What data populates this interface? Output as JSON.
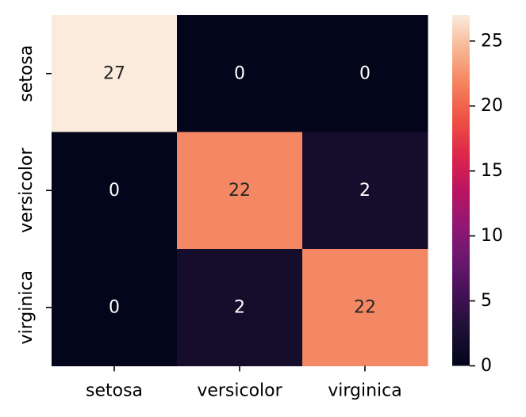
{
  "chart_data": {
    "type": "heatmap",
    "title": "",
    "xlabel": "",
    "ylabel": "",
    "x_categories": [
      "setosa",
      "versicolor",
      "virginica"
    ],
    "y_categories": [
      "setosa",
      "versicolor",
      "virginica"
    ],
    "values": [
      [
        27,
        0,
        0
      ],
      [
        0,
        22,
        2
      ],
      [
        0,
        2,
        22
      ]
    ],
    "annotated": true,
    "colormap": "rocket",
    "colorbar": {
      "min": 0,
      "max": 27,
      "ticks": [
        0,
        5,
        10,
        15,
        20,
        25
      ],
      "placement": "right"
    },
    "colors": {
      "low": "#03051a",
      "high": "#faebdd",
      "annotation_dark_text": "#262626",
      "annotation_light_text": "#ffffff"
    }
  }
}
